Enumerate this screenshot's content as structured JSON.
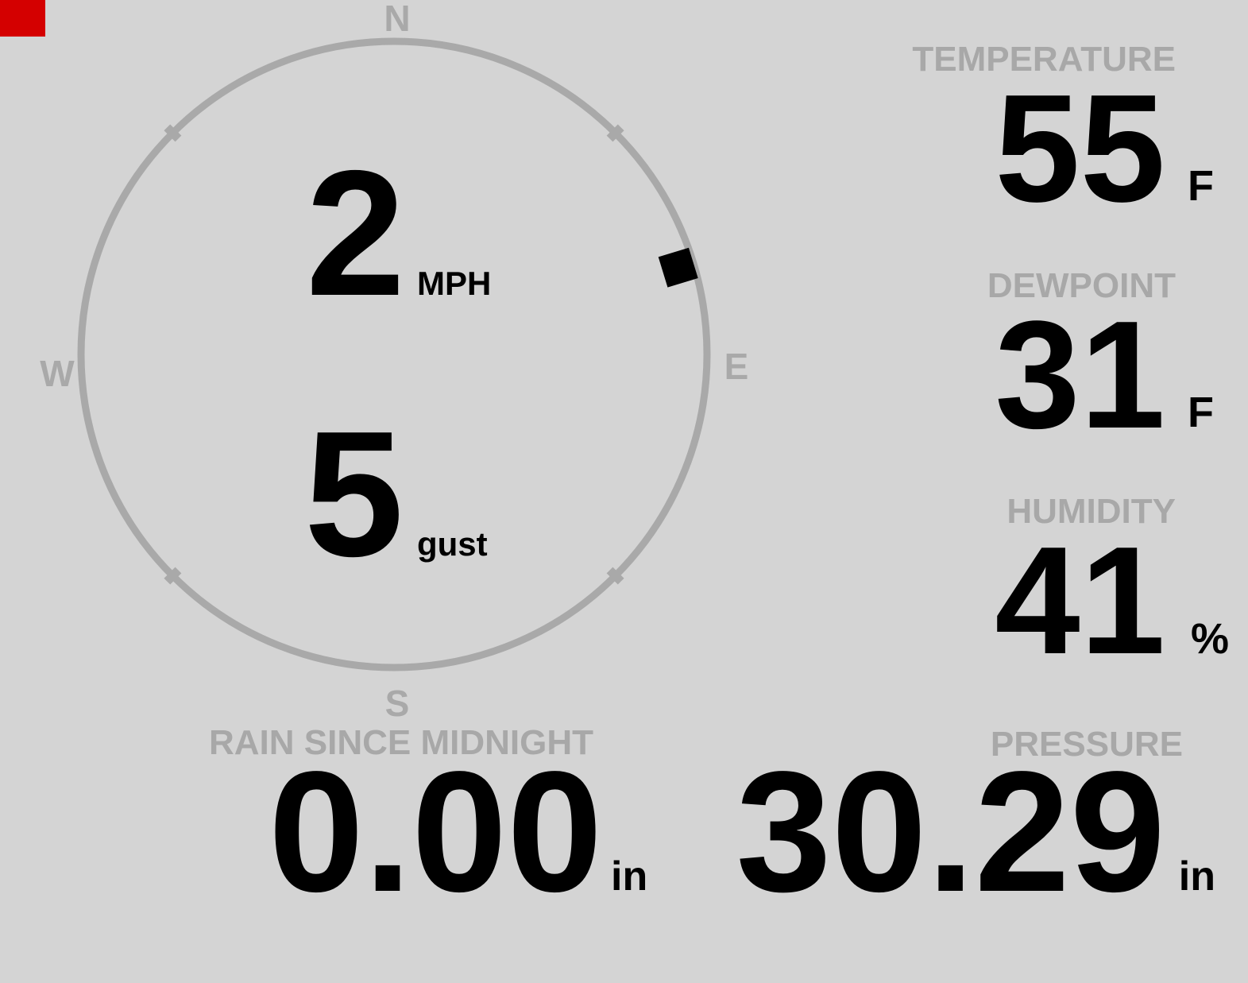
{
  "app": {
    "background_color": "#d4d4d4",
    "muted_gray": "#a9a9a9",
    "value_color": "#000000",
    "alert_color": "#d40000"
  },
  "wind_compass": {
    "cardinals": {
      "north": "N",
      "east": "E",
      "south": "S",
      "west": "W"
    },
    "speed": {
      "value": "2",
      "unit": "MPH"
    },
    "gust": {
      "value": "5",
      "unit": "gust"
    },
    "direction_degrees": 73
  },
  "metrics": {
    "temperature": {
      "label": "TEMPERATURE",
      "value": "55",
      "unit": "F"
    },
    "dewpoint": {
      "label": "DEWPOINT",
      "value": "31",
      "unit": "F"
    },
    "humidity": {
      "label": "HUMIDITY",
      "value": "41",
      "unit": "%"
    },
    "rain": {
      "label": "RAIN SINCE MIDNIGHT",
      "value": "0.00",
      "unit": "in"
    },
    "pressure": {
      "label": "PRESSURE",
      "value": "30.29",
      "unit": "in"
    }
  }
}
